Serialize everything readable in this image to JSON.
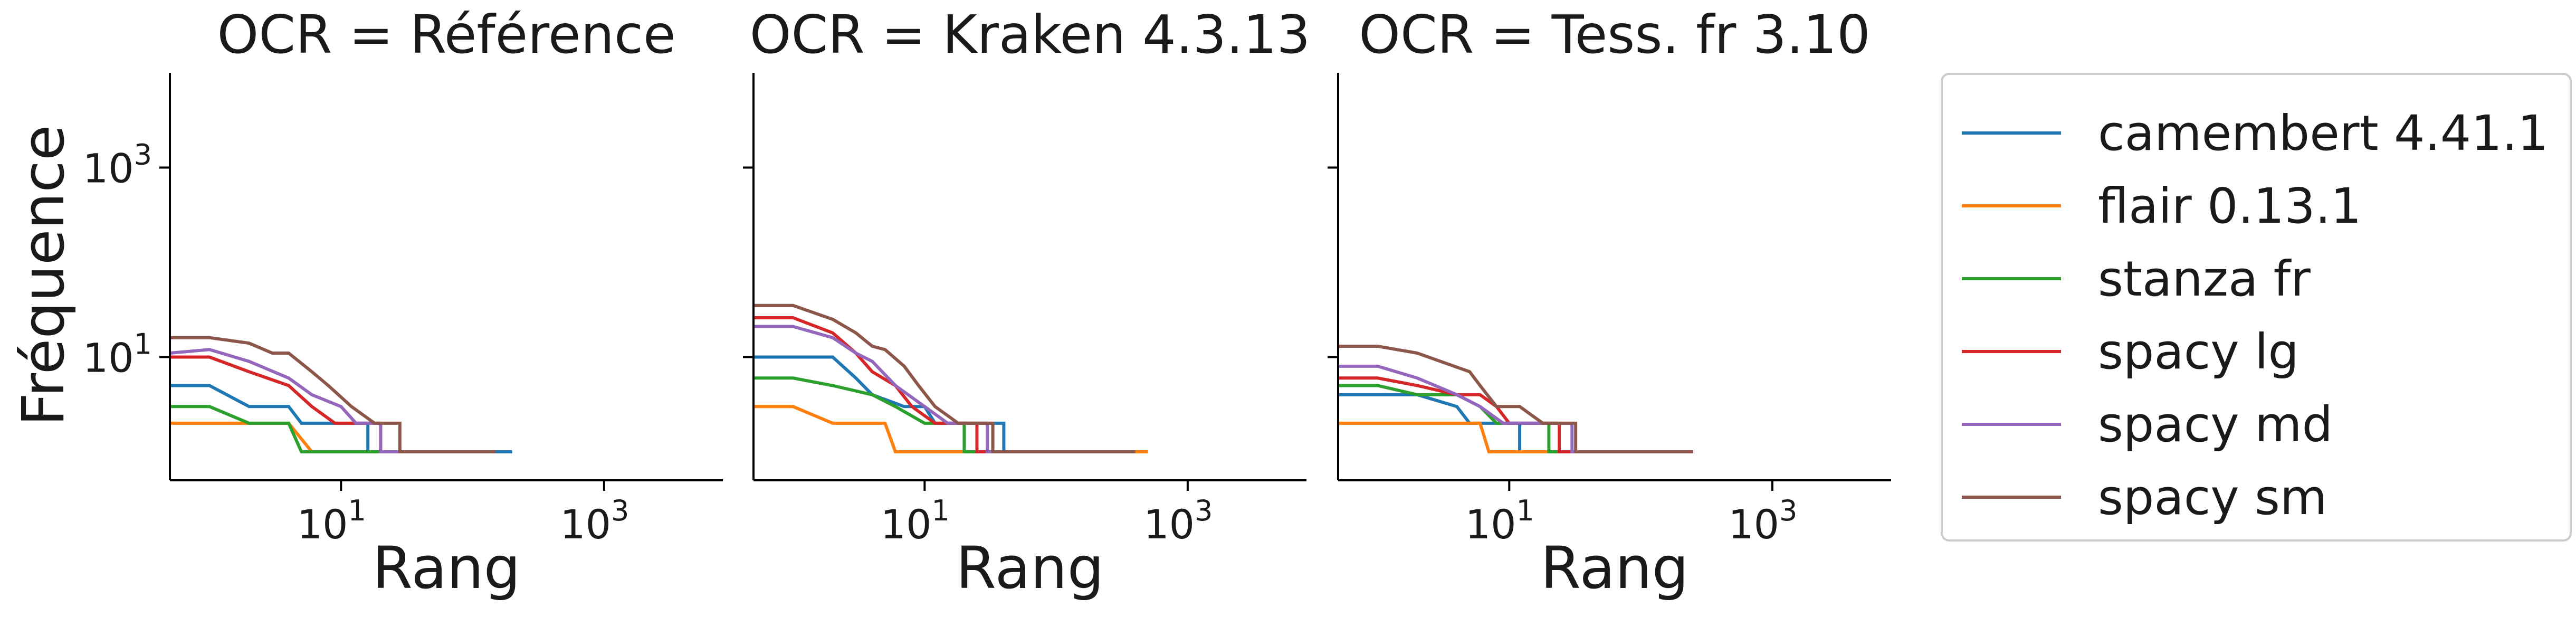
{
  "chart_data": {
    "type": "line",
    "x_scale": "log",
    "y_scale": "log",
    "xlim": [
      0.5,
      8000
    ],
    "ylim": [
      0.5,
      10000
    ],
    "grid": false,
    "legend_position": "right",
    "ylabel": "Fréquence",
    "xticks": [
      {
        "base": "10",
        "exp": "1",
        "value": 10
      },
      {
        "base": "10",
        "exp": "3",
        "value": 1000
      }
    ],
    "yticks": [
      {
        "base": "10",
        "exp": "1",
        "value": 10
      },
      {
        "base": "10",
        "exp": "3",
        "value": 1000
      }
    ],
    "series_styles": [
      {
        "name": "camembert 4.41.1",
        "color": "#1f77b4"
      },
      {
        "name": "flair 0.13.1",
        "color": "#ff7f0e"
      },
      {
        "name": "stanza fr",
        "color": "#2ca02c"
      },
      {
        "name": "spacy lg",
        "color": "#d62728"
      },
      {
        "name": "spacy md",
        "color": "#9467bd"
      },
      {
        "name": "spacy sm",
        "color": "#8c564b"
      }
    ],
    "panels": [
      {
        "title": "OCR = Référence",
        "xlabel": "Rang",
        "series": [
          {
            "name": "camembert 4.41.1",
            "points": [
              [
                0.5,
                5
              ],
              [
                1,
                5
              ],
              [
                2,
                3
              ],
              [
                4,
                3
              ],
              [
                5,
                2
              ],
              [
                16,
                2
              ],
              [
                16,
                1
              ],
              [
                200,
                1
              ]
            ]
          },
          {
            "name": "flair 0.13.1",
            "points": [
              [
                0.5,
                2
              ],
              [
                2,
                2
              ],
              [
                4,
                2
              ],
              [
                6,
                1
              ],
              [
                100,
                1
              ]
            ]
          },
          {
            "name": "stanza fr",
            "points": [
              [
                0.5,
                3
              ],
              [
                1,
                3
              ],
              [
                2,
                2
              ],
              [
                4,
                2
              ],
              [
                5,
                1
              ],
              [
                60,
                1
              ]
            ]
          },
          {
            "name": "spacy lg",
            "points": [
              [
                0.5,
                10
              ],
              [
                1,
                10
              ],
              [
                2,
                7
              ],
              [
                4,
                5
              ],
              [
                6,
                3
              ],
              [
                9,
                2
              ],
              [
                20,
                2
              ],
              [
                20,
                1
              ],
              [
                80,
                1
              ]
            ]
          },
          {
            "name": "spacy md",
            "points": [
              [
                0.5,
                11
              ],
              [
                1,
                12
              ],
              [
                2,
                9
              ],
              [
                4,
                6
              ],
              [
                6,
                4
              ],
              [
                10,
                3
              ],
              [
                13,
                2
              ],
              [
                20,
                2
              ],
              [
                20,
                1
              ],
              [
                90,
                1
              ]
            ]
          },
          {
            "name": "spacy sm",
            "points": [
              [
                0.5,
                16
              ],
              [
                1,
                16
              ],
              [
                2,
                14
              ],
              [
                3,
                11
              ],
              [
                4,
                11
              ],
              [
                6,
                7
              ],
              [
                8,
                5
              ],
              [
                12,
                3
              ],
              [
                18,
                2
              ],
              [
                28,
                2
              ],
              [
                28,
                1
              ],
              [
                150,
                1
              ]
            ]
          }
        ]
      },
      {
        "title": "OCR = Kraken 4.3.13",
        "xlabel": "Rang",
        "series": [
          {
            "name": "camembert 4.41.1",
            "points": [
              [
                0.5,
                10
              ],
              [
                2,
                10
              ],
              [
                3,
                6
              ],
              [
                4,
                4
              ],
              [
                7,
                3
              ],
              [
                10,
                3
              ],
              [
                12,
                2
              ],
              [
                40,
                2
              ],
              [
                40,
                1
              ],
              [
                300,
                1
              ]
            ]
          },
          {
            "name": "flair 0.13.1",
            "points": [
              [
                0.5,
                3
              ],
              [
                1,
                3
              ],
              [
                2,
                2
              ],
              [
                5,
                2
              ],
              [
                6,
                1
              ],
              [
                500,
                1
              ]
            ]
          },
          {
            "name": "stanza fr",
            "points": [
              [
                0.5,
                6
              ],
              [
                1,
                6
              ],
              [
                2,
                5
              ],
              [
                4,
                4
              ],
              [
                6,
                3
              ],
              [
                10,
                2
              ],
              [
                20,
                2
              ],
              [
                20,
                1
              ],
              [
                200,
                1
              ]
            ]
          },
          {
            "name": "spacy lg",
            "points": [
              [
                0.5,
                26
              ],
              [
                1,
                26
              ],
              [
                2,
                18
              ],
              [
                3,
                11
              ],
              [
                4,
                7
              ],
              [
                6,
                5
              ],
              [
                8,
                3
              ],
              [
                12,
                2
              ],
              [
                25,
                2
              ],
              [
                25,
                1
              ],
              [
                250,
                1
              ]
            ]
          },
          {
            "name": "spacy md",
            "points": [
              [
                0.5,
                21
              ],
              [
                1,
                21
              ],
              [
                2,
                16
              ],
              [
                3,
                11
              ],
              [
                4,
                9
              ],
              [
                6,
                5
              ],
              [
                10,
                3
              ],
              [
                15,
                2
              ],
              [
                30,
                2
              ],
              [
                30,
                1
              ],
              [
                250,
                1
              ]
            ]
          },
          {
            "name": "spacy sm",
            "points": [
              [
                0.5,
                35
              ],
              [
                1,
                35
              ],
              [
                2,
                25
              ],
              [
                3,
                18
              ],
              [
                4,
                13
              ],
              [
                5,
                12
              ],
              [
                7,
                8
              ],
              [
                9,
                5
              ],
              [
                12,
                3
              ],
              [
                18,
                2
              ],
              [
                33,
                2
              ],
              [
                33,
                1
              ],
              [
                400,
                1
              ]
            ]
          }
        ]
      },
      {
        "title": "OCR = Tess. fr 3.10",
        "xlabel": "Rang",
        "series": [
          {
            "name": "camembert 4.41.1",
            "points": [
              [
                0.5,
                4
              ],
              [
                1,
                4
              ],
              [
                2,
                4
              ],
              [
                4,
                3
              ],
              [
                5,
                2
              ],
              [
                12,
                2
              ],
              [
                12,
                1
              ],
              [
                120,
                1
              ]
            ]
          },
          {
            "name": "flair 0.13.1",
            "points": [
              [
                0.5,
                2
              ],
              [
                2,
                2
              ],
              [
                4,
                2
              ],
              [
                6,
                2
              ],
              [
                7,
                1
              ],
              [
                250,
                1
              ]
            ]
          },
          {
            "name": "stanza fr",
            "points": [
              [
                0.5,
                5
              ],
              [
                1,
                5
              ],
              [
                2,
                4
              ],
              [
                4,
                4
              ],
              [
                6,
                3
              ],
              [
                8,
                2
              ],
              [
                20,
                2
              ],
              [
                20,
                1
              ],
              [
                200,
                1
              ]
            ]
          },
          {
            "name": "spacy lg",
            "points": [
              [
                0.5,
                6
              ],
              [
                1,
                6
              ],
              [
                2,
                5
              ],
              [
                4,
                4
              ],
              [
                6,
                4
              ],
              [
                8,
                3
              ],
              [
                10,
                2
              ],
              [
                24,
                2
              ],
              [
                24,
                1
              ],
              [
                180,
                1
              ]
            ]
          },
          {
            "name": "spacy md",
            "points": [
              [
                0.5,
                8
              ],
              [
                1,
                8
              ],
              [
                2,
                6
              ],
              [
                4,
                4
              ],
              [
                6,
                3
              ],
              [
                9,
                2
              ],
              [
                30,
                2
              ],
              [
                30,
                1
              ],
              [
                250,
                1
              ]
            ]
          },
          {
            "name": "spacy sm",
            "points": [
              [
                0.5,
                13
              ],
              [
                1,
                13
              ],
              [
                2,
                11
              ],
              [
                3,
                9
              ],
              [
                5,
                7
              ],
              [
                6,
                5
              ],
              [
                8,
                3
              ],
              [
                12,
                3
              ],
              [
                18,
                2
              ],
              [
                32,
                2
              ],
              [
                32,
                1
              ],
              [
                250,
                1
              ]
            ]
          }
        ]
      }
    ]
  }
}
